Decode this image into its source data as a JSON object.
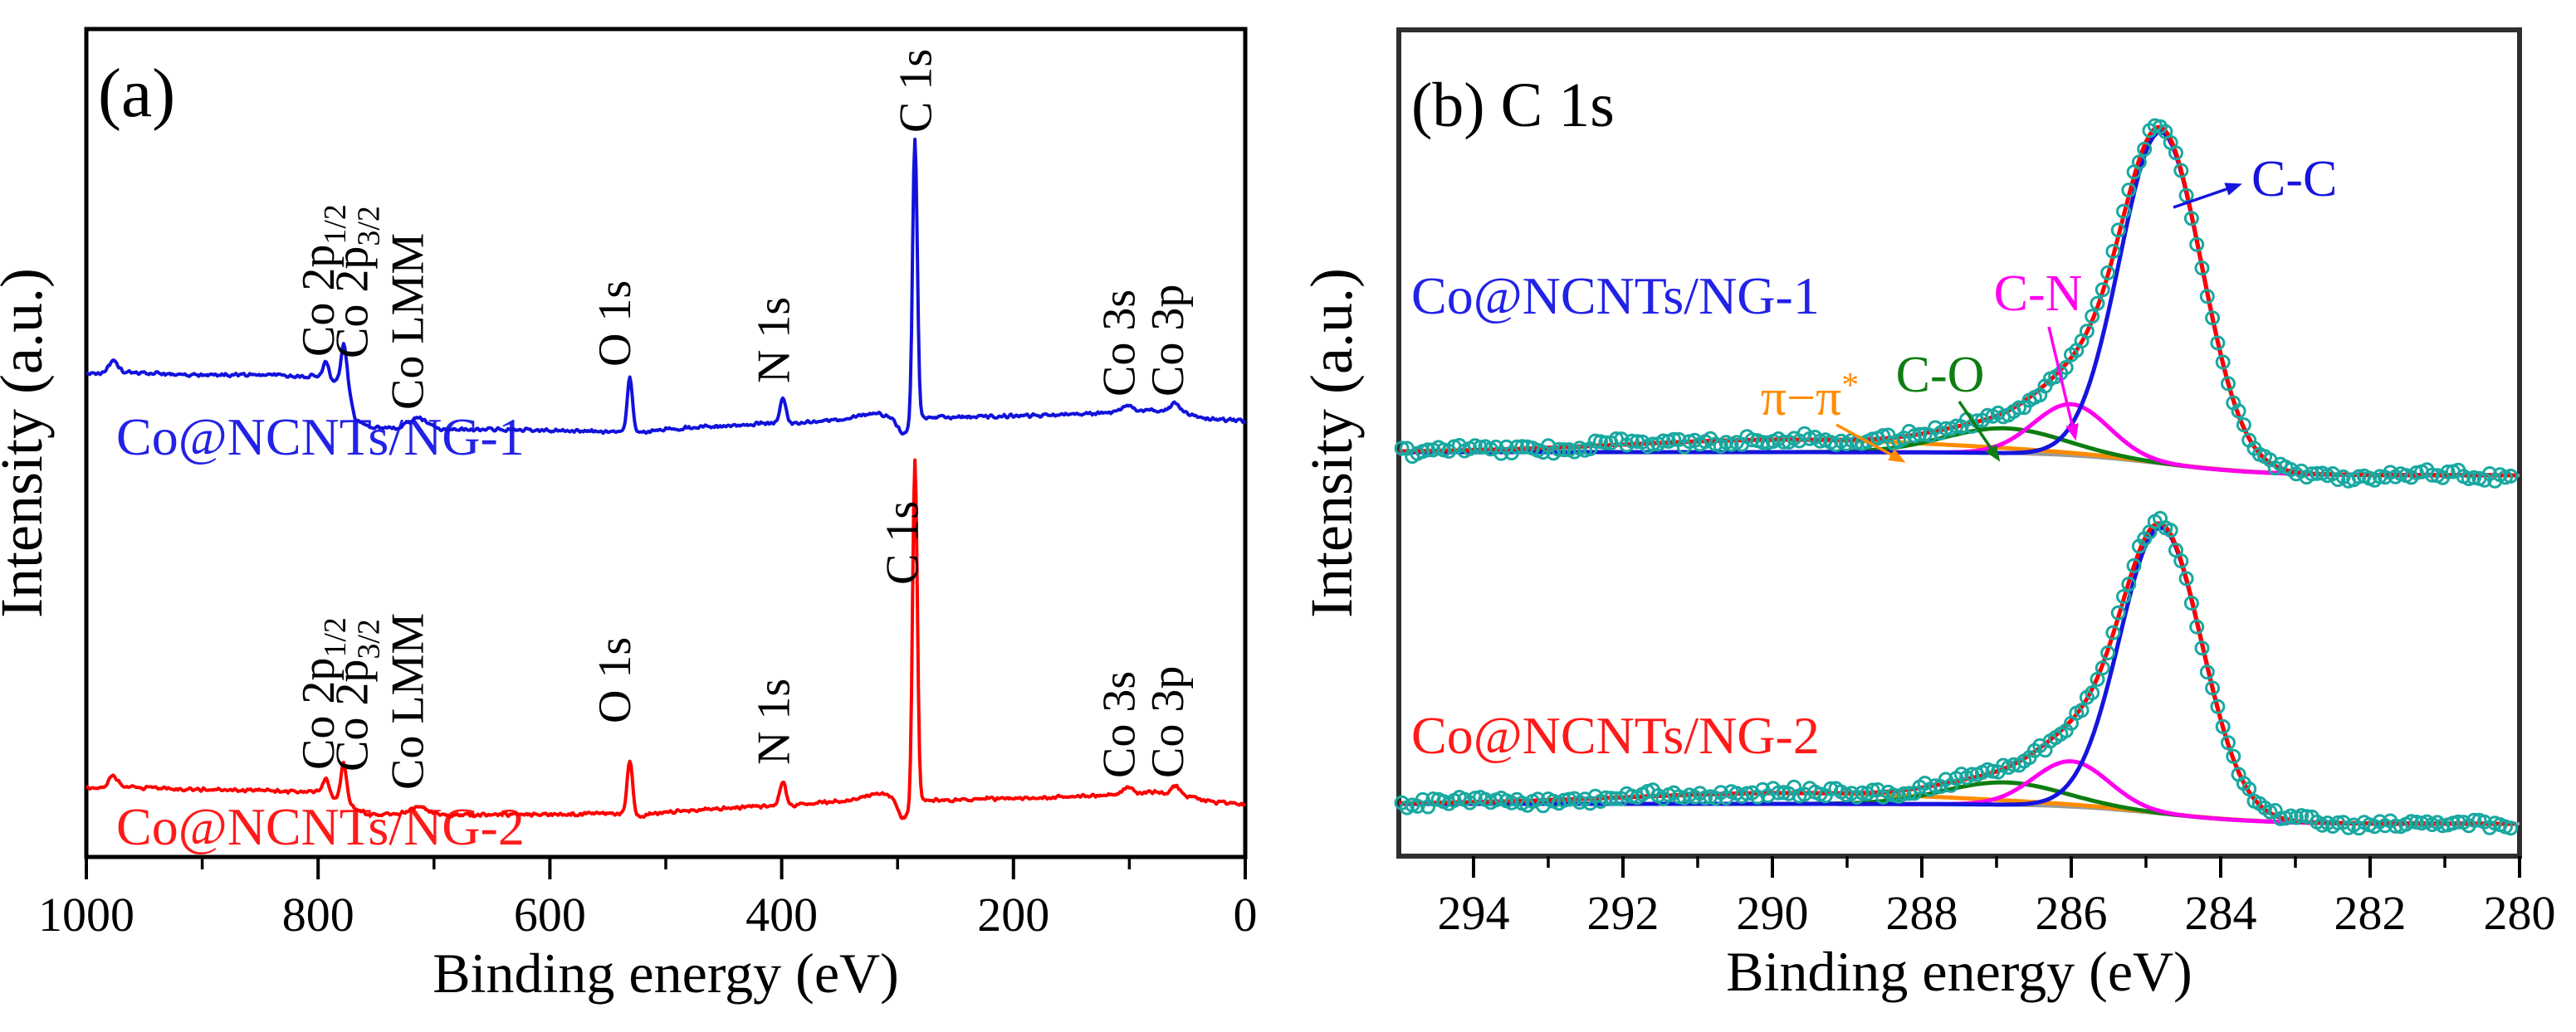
{
  "chart_data": [
    {
      "type": "line",
      "panel": "a",
      "panel_tag": "(a)",
      "xlabel": "Binding energy (eV)",
      "ylabel": "Intensity (a.u.)",
      "x_range": [
        1000,
        0
      ],
      "x_major_ticks": [
        1000,
        800,
        600,
        400,
        200,
        0
      ],
      "x_minor_step": 100,
      "grid": false,
      "series": [
        {
          "name": "Co@NCNTs/NG-1",
          "name_color": "#2222e6",
          "color": "#1212dc",
          "background_anchors": [
            [
              1000,
              450
            ],
            [
              985,
              450
            ],
            [
              977,
              441
            ],
            [
              968,
              449
            ],
            [
              900,
              452
            ],
            [
              840,
              452
            ],
            [
              810,
              454
            ],
            [
              798,
              452
            ],
            [
              789,
              460
            ],
            [
              783,
              460
            ],
            [
              775,
              462
            ],
            [
              768,
              505
            ],
            [
              755,
              516
            ],
            [
              730,
              516
            ],
            [
              713,
              509
            ],
            [
              695,
              517
            ],
            [
              640,
              518
            ],
            [
              560,
              520
            ],
            [
              535,
              521
            ],
            [
              524,
              522
            ],
            [
              500,
              517
            ],
            [
              460,
              514
            ],
            [
              430,
              512
            ],
            [
              404,
              510
            ],
            [
              380,
              509
            ],
            [
              345,
              505
            ],
            [
              318,
              498
            ],
            [
              305,
              503
            ],
            [
              296,
              524
            ],
            [
              290,
              516
            ],
            [
              287,
              500
            ],
            [
              283,
              495
            ],
            [
              281,
              503
            ],
            [
              250,
              503
            ],
            [
              160,
              500
            ],
            [
              105,
              496
            ],
            [
              80,
              494
            ],
            [
              55,
              497
            ],
            [
              30,
              505
            ],
            [
              0,
              507
            ]
          ],
          "peaks": [
            [
              977,
              6,
              4
            ],
            [
              793,
              21,
              2.5
            ],
            [
              778,
              48,
              2.2
            ],
            [
              713,
              6,
              8
            ],
            [
              531,
              66,
              2.3
            ],
            [
              399,
              30,
              2.5
            ],
            [
              285,
              330,
              2.0
            ],
            [
              101,
              7,
              4
            ],
            [
              60,
              11,
              3.5
            ]
          ],
          "peak_labels": [
            {
              "text": "Co 2p",
              "sub": "1/2",
              "x_ev": 801,
              "y_bottom": 430
            },
            {
              "text": "Co 2p",
              "sub": "3/2",
              "x_ev": 772,
              "y_bottom": 432
            },
            {
              "text": "Co LMM",
              "x_ev": 724,
              "y_bottom": 494
            },
            {
              "text": "O 1s",
              "x_ev": 545,
              "y_bottom": 442
            },
            {
              "text": "N 1s",
              "x_ev": 408,
              "y_bottom": 462
            },
            {
              "text": "C 1s",
              "x_ev": 285.5,
              "y_bottom": 160
            },
            {
              "text": "Co 3s",
              "x_ev": 110,
              "y_bottom": 478
            },
            {
              "text": "Co 3p",
              "x_ev": 68,
              "y_bottom": 478
            }
          ]
        },
        {
          "name": "Co@NCNTs/NG-2",
          "name_color": "#ff1a1a",
          "color": "#ff0000",
          "background_anchors": [
            [
              1000,
              950
            ],
            [
              985,
              950
            ],
            [
              977,
              941
            ],
            [
              968,
              949
            ],
            [
              900,
              952
            ],
            [
              840,
              953
            ],
            [
              810,
              955
            ],
            [
              798,
              953
            ],
            [
              789,
              961
            ],
            [
              783,
              961
            ],
            [
              775,
              963
            ],
            [
              768,
              975
            ],
            [
              755,
              982
            ],
            [
              730,
              982
            ],
            [
              713,
              977
            ],
            [
              695,
              983
            ],
            [
              640,
              982
            ],
            [
              560,
              981
            ],
            [
              535,
              980
            ],
            [
              524,
              984
            ],
            [
              500,
              979
            ],
            [
              460,
              975
            ],
            [
              430,
              973
            ],
            [
              404,
              971
            ],
            [
              380,
              970
            ],
            [
              345,
              965
            ],
            [
              318,
              956
            ],
            [
              305,
              960
            ],
            [
              296,
              988
            ],
            [
              290,
              980
            ],
            [
              287,
              962
            ],
            [
              283,
              958
            ],
            [
              281,
              964
            ],
            [
              250,
              964
            ],
            [
              160,
              961
            ],
            [
              105,
              957
            ],
            [
              80,
              955
            ],
            [
              55,
              958
            ],
            [
              30,
              967
            ],
            [
              0,
              970
            ]
          ],
          "peaks": [
            [
              977,
              6,
              4
            ],
            [
              793,
              19,
              2.5
            ],
            [
              778,
              44,
              2.2
            ],
            [
              713,
              5,
              8
            ],
            [
              531,
              64,
              2.3
            ],
            [
              399,
              30,
              2.5
            ],
            [
              285,
              405,
              2.0
            ],
            [
              101,
              7,
              4
            ],
            [
              60,
              11,
              3.5
            ]
          ],
          "peak_labels": [
            {
              "text": "Co 2p",
              "sub": "1/2",
              "x_ev": 801,
              "y_bottom": 928
            },
            {
              "text": "Co 2p",
              "sub": "3/2",
              "x_ev": 772,
              "y_bottom": 930
            },
            {
              "text": "Co LMM",
              "x_ev": 724,
              "y_bottom": 952
            },
            {
              "text": "O 1s",
              "x_ev": 545,
              "y_bottom": 872
            },
            {
              "text": "N 1s",
              "x_ev": 408,
              "y_bottom": 922
            },
            {
              "text": "C 1s",
              "x_ev": 297,
              "y_bottom": 705
            },
            {
              "text": "Co 3s",
              "x_ev": 110,
              "y_bottom": 938
            },
            {
              "text": "Co 3p",
              "x_ev": 68,
              "y_bottom": 938
            }
          ]
        }
      ]
    },
    {
      "type": "scatter",
      "panel": "b",
      "panel_tag": "(b) C 1s",
      "xlabel": "Binding energy (eV)",
      "ylabel": "Intensity (a.u.)",
      "x_range": [
        295,
        280
      ],
      "x_major_ticks": [
        294,
        292,
        290,
        288,
        286,
        284,
        282,
        280
      ],
      "x_minor_step": 1,
      "grid": false,
      "point_color": "#18a8a0",
      "envelope_color": "#ff0000",
      "baseline_color": "#9a9a9a",
      "series": [
        {
          "name": "Co@NCNTs/NG-1",
          "name_color": "#2222e6",
          "zero_y": 573,
          "step_height": 28,
          "components": [
            {
              "name": "pi-pi*",
              "color": "#ff8c00",
              "center": 289.8,
              "amp": 15,
              "sigma": 2.2
            },
            {
              "name": "C-O",
              "color": "#0e7d12",
              "center": 286.9,
              "amp": 30,
              "sigma": 0.8
            },
            {
              "name": "C-N",
              "color": "#ff00ee",
              "center": 286.0,
              "amp": 62,
              "sigma": 0.5
            },
            {
              "name": "C-C",
              "color": "#1515dd",
              "center": 284.8,
              "amp": 400,
              "sigma": 0.55
            }
          ]
        },
        {
          "name": "Co@NCNTs/NG-2",
          "name_color": "#ff1a1a",
          "zero_y": 993,
          "step_height": 24,
          "components": [
            {
              "name": "pi-pi*",
              "color": "#ff8c00",
              "center": 289.8,
              "amp": 13,
              "sigma": 2.2
            },
            {
              "name": "C-O",
              "color": "#0e7d12",
              "center": 286.9,
              "amp": 27,
              "sigma": 0.8
            },
            {
              "name": "C-N",
              "color": "#ff00ee",
              "center": 286.0,
              "amp": 55,
              "sigma": 0.5
            },
            {
              "name": "C-C",
              "color": "#1515dd",
              "center": 284.8,
              "amp": 345,
              "sigma": 0.55
            }
          ]
        }
      ],
      "annotations": [
        {
          "text": "π−π",
          "sup": "*",
          "color": "#ff8c00",
          "tx": 2180,
          "ty": 500,
          "anchor": "middle",
          "arrow": [
            2212,
            512,
            2278,
            548
          ]
        },
        {
          "text": "C-O",
          "sup": "",
          "color": "#0e7d12",
          "tx": 2337,
          "ty": 472,
          "anchor": "middle",
          "arrow": [
            2360,
            484,
            2398,
            540
          ]
        },
        {
          "text": "C-N",
          "sup": "",
          "color": "#ff00ee",
          "tx": 2455,
          "ty": 374,
          "anchor": "middle",
          "arrow": [
            2468,
            394,
            2496,
            512
          ]
        },
        {
          "text": "C-C",
          "sup": "",
          "color": "#1515dd",
          "tx": 2712,
          "ty": 236,
          "anchor": "start",
          "arrow": [
            2618,
            250,
            2682,
            228
          ]
        }
      ]
    }
  ]
}
